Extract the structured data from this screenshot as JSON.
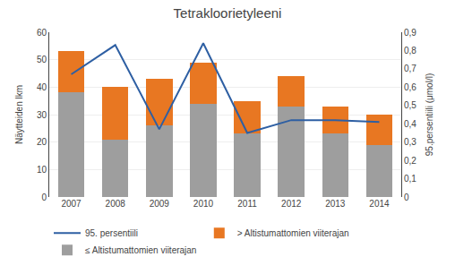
{
  "chart_data": {
    "type": "bar",
    "title": "Tetrakloorietyleeni",
    "categories": [
      "2007",
      "2008",
      "2009",
      "2010",
      "2011",
      "2012",
      "2013",
      "2014"
    ],
    "series": [
      {
        "name": "≤ Altistumattomien viiterajan",
        "type": "bar",
        "color": "#9E9E9E",
        "values": [
          38,
          21,
          26,
          34,
          23,
          33,
          23,
          19
        ]
      },
      {
        "name": "> Altistumattomien viiterajan",
        "type": "bar",
        "color": "#E87722",
        "values": [
          15,
          19,
          17,
          15,
          12,
          11,
          10,
          11
        ]
      },
      {
        "name": "95. persentiili",
        "type": "line",
        "axis": "y2",
        "color": "#2E5FA3",
        "values": [
          0.67,
          0.83,
          0.37,
          0.84,
          0.35,
          0.42,
          0.42,
          0.41
        ]
      }
    ],
    "stacked": true,
    "ylabel": "Näytteiden lkm",
    "y2label": "95.persentiili (μmol/l)",
    "ylim": [
      0,
      60
    ],
    "yticks": [
      0,
      10,
      20,
      30,
      40,
      50,
      60
    ],
    "y2lim": [
      0,
      0.9
    ],
    "y2ticks": [
      0,
      {
        "value": 0.1,
        "label": "0,1"
      },
      {
        "value": 0.2,
        "label": "0,2"
      },
      {
        "value": 0.3,
        "label": "0,3"
      },
      {
        "value": 0.4,
        "label": "0,4"
      },
      {
        "value": 0.5,
        "label": "0,5"
      },
      {
        "value": 0.6,
        "label": "0,6"
      },
      {
        "value": 0.7,
        "label": "0,7"
      },
      {
        "value": 0.8,
        "label": "0,8"
      },
      {
        "value": 0.9,
        "label": "0,9"
      }
    ],
    "grid": true,
    "legend": "lower left"
  }
}
